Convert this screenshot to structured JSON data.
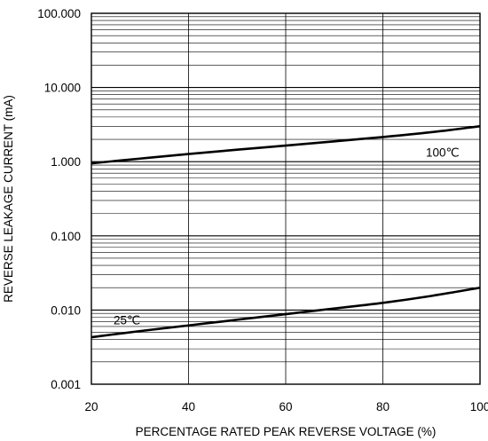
{
  "chart_data": {
    "type": "line",
    "title": "",
    "xlabel": "PERCENTAGE RATED PEAK REVERSE VOLTAGE (%)",
    "ylabel": "REVERSE LEAKAGE CURRENT (mA)",
    "x_scale": "linear",
    "y_scale": "log",
    "xlim": [
      20,
      100
    ],
    "ylim": [
      0.001,
      100
    ],
    "x_ticks": [
      20,
      40,
      60,
      80,
      100
    ],
    "x_tick_labels": [
      "20",
      "40",
      "60",
      "80",
      "100"
    ],
    "y_ticks": [
      0.001,
      0.01,
      0.1,
      1,
      10,
      100
    ],
    "y_tick_labels": [
      "0.001",
      "0.010",
      "0.100",
      "1.000",
      "10.000",
      "100.000"
    ],
    "grid": true,
    "legend": "none",
    "series": [
      {
        "label": "100℃",
        "x": [
          20,
          30,
          40,
          50,
          60,
          70,
          80,
          90,
          100
        ],
        "y": [
          0.95,
          1.1,
          1.27,
          1.45,
          1.65,
          1.88,
          2.15,
          2.5,
          3.0
        ]
      },
      {
        "label": "25℃",
        "x": [
          20,
          30,
          40,
          50,
          60,
          70,
          80,
          90,
          100
        ],
        "y": [
          0.0043,
          0.0052,
          0.0062,
          0.0074,
          0.0088,
          0.0105,
          0.0125,
          0.0155,
          0.02
        ]
      }
    ]
  }
}
